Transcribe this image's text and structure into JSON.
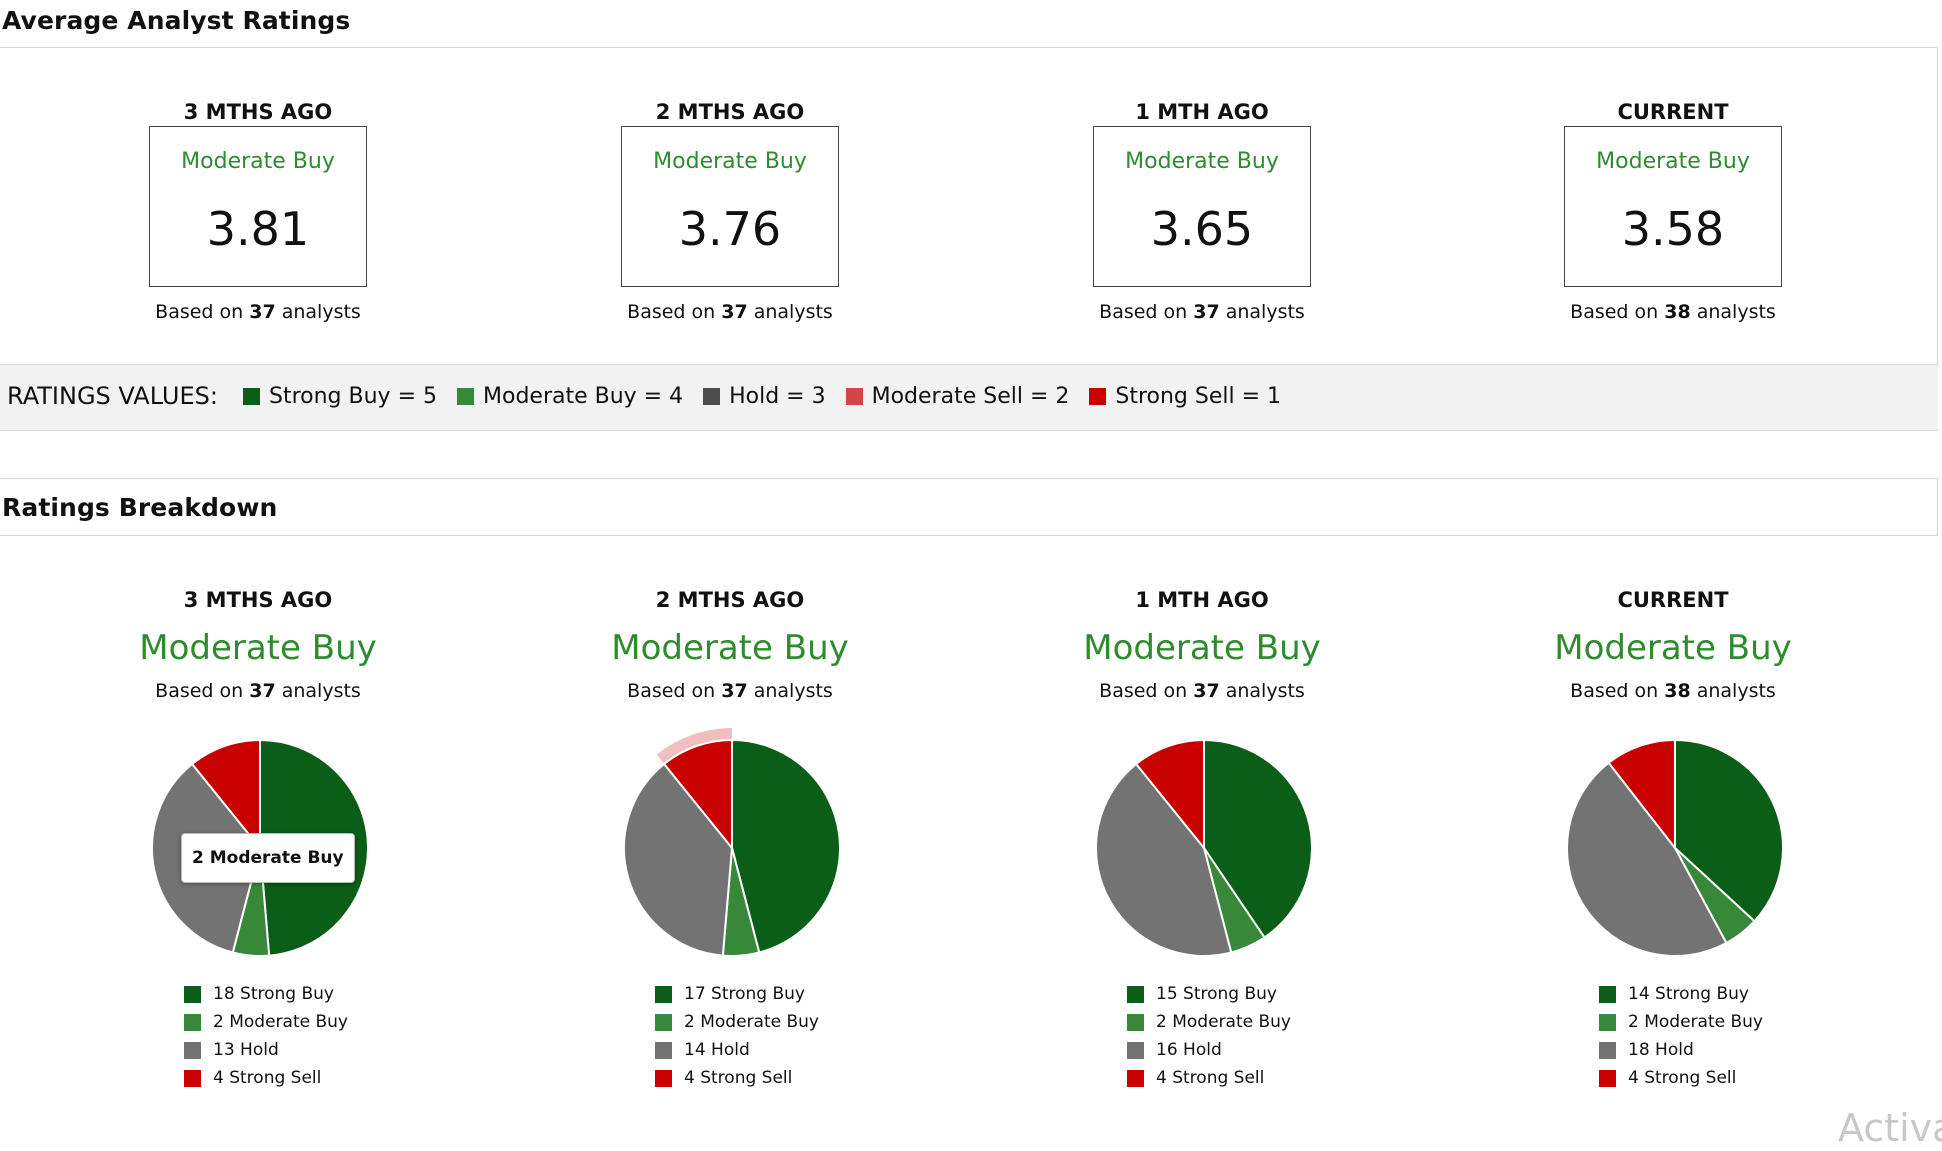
{
  "avg_section": {
    "title": "Average Analyst Ratings",
    "columns": [
      {
        "label": "3 MTHS AGO",
        "rating": "Moderate Buy",
        "score": "3.81",
        "based_prefix": "Based on ",
        "analysts": "37",
        "based_suffix": " analysts"
      },
      {
        "label": "2 MTHS AGO",
        "rating": "Moderate Buy",
        "score": "3.76",
        "based_prefix": "Based on ",
        "analysts": "37",
        "based_suffix": " analysts"
      },
      {
        "label": "1 MTH AGO",
        "rating": "Moderate Buy",
        "score": "3.65",
        "based_prefix": "Based on ",
        "analysts": "37",
        "based_suffix": " analysts"
      },
      {
        "label": "CURRENT",
        "rating": "Moderate Buy",
        "score": "3.58",
        "based_prefix": "Based on ",
        "analysts": "38",
        "based_suffix": " analysts"
      }
    ]
  },
  "ratings_values": {
    "label": "RATINGS VALUES:",
    "items": [
      {
        "text": "Strong Buy = 5",
        "color": "#0b5e17"
      },
      {
        "text": "Moderate Buy = 4",
        "color": "#38883a"
      },
      {
        "text": "Hold = 3",
        "color": "#4d4d4d"
      },
      {
        "text": "Moderate Sell = 2",
        "color": "#d64545"
      },
      {
        "text": "Strong Sell = 1",
        "color": "#c80000"
      }
    ]
  },
  "breakdown_section": {
    "title": "Ratings Breakdown",
    "columns": [
      {
        "label": "3 MTHS AGO",
        "rating": "Moderate Buy",
        "based_prefix": "Based on ",
        "analysts": "37",
        "based_suffix": " analysts",
        "legend": [
          "18 Strong Buy",
          "2 Moderate Buy",
          "13 Hold",
          "4 Strong Sell"
        ]
      },
      {
        "label": "2 MTHS AGO",
        "rating": "Moderate Buy",
        "based_prefix": "Based on ",
        "analysts": "37",
        "based_suffix": " analysts",
        "legend": [
          "17 Strong Buy",
          "2 Moderate Buy",
          "14 Hold",
          "4 Strong Sell"
        ]
      },
      {
        "label": "1 MTH AGO",
        "rating": "Moderate Buy",
        "based_prefix": "Based on ",
        "analysts": "37",
        "based_suffix": " analysts",
        "legend": [
          "15 Strong Buy",
          "2 Moderate Buy",
          "16 Hold",
          "4 Strong Sell"
        ]
      },
      {
        "label": "CURRENT",
        "rating": "Moderate Buy",
        "based_prefix": "Based on ",
        "analysts": "38",
        "based_suffix": " analysts",
        "legend": [
          "14 Strong Buy",
          "2 Moderate Buy",
          "18 Hold",
          "4 Strong Sell"
        ]
      }
    ],
    "tooltip": "2 Moderate Buy"
  },
  "chart_data": [
    {
      "type": "pie",
      "title": "3 MTHS AGO",
      "categories": [
        "Strong Buy",
        "Moderate Buy",
        "Hold",
        "Strong Sell"
      ],
      "values": [
        18,
        2,
        13,
        4
      ],
      "colors": [
        "#0b5e17",
        "#38883a",
        "#737373",
        "#c80000"
      ]
    },
    {
      "type": "pie",
      "title": "2 MTHS AGO",
      "categories": [
        "Strong Buy",
        "Moderate Buy",
        "Hold",
        "Strong Sell"
      ],
      "values": [
        17,
        2,
        14,
        4
      ],
      "colors": [
        "#0b5e17",
        "#38883a",
        "#737373",
        "#c80000"
      ],
      "highlighted": "Strong Sell"
    },
    {
      "type": "pie",
      "title": "1 MTH AGO",
      "categories": [
        "Strong Buy",
        "Moderate Buy",
        "Hold",
        "Strong Sell"
      ],
      "values": [
        15,
        2,
        16,
        4
      ],
      "colors": [
        "#0b5e17",
        "#38883a",
        "#737373",
        "#c80000"
      ]
    },
    {
      "type": "pie",
      "title": "CURRENT",
      "categories": [
        "Strong Buy",
        "Moderate Buy",
        "Hold",
        "Strong Sell"
      ],
      "values": [
        14,
        2,
        18,
        4
      ],
      "colors": [
        "#0b5e17",
        "#38883a",
        "#737373",
        "#c80000"
      ]
    }
  ],
  "watermark": "Activa"
}
